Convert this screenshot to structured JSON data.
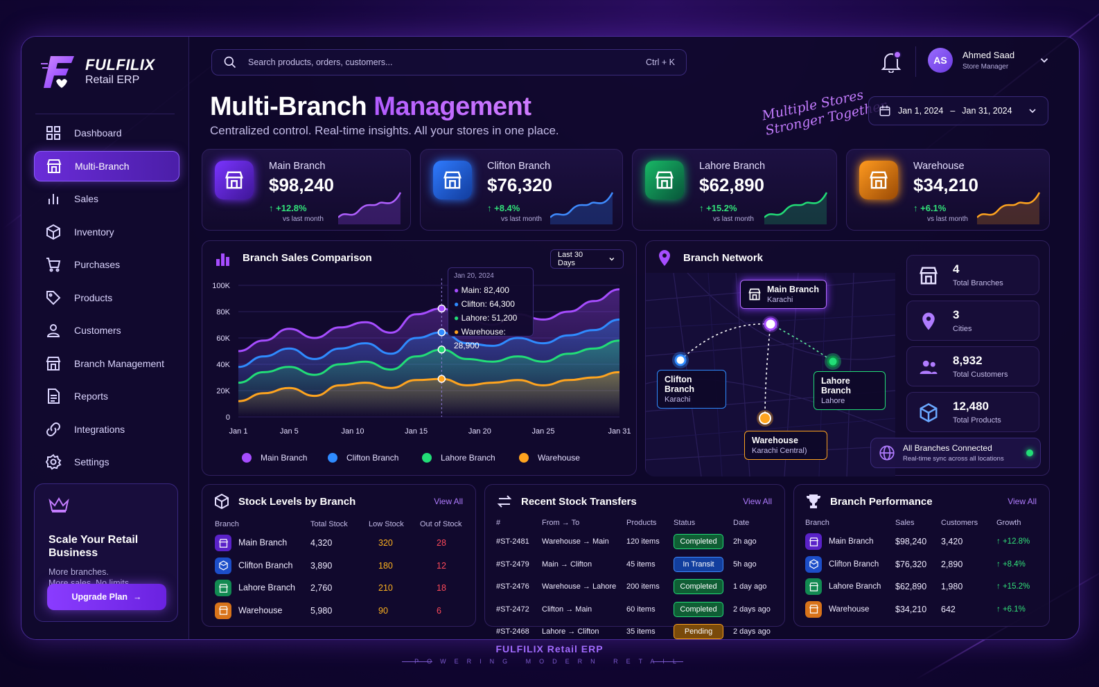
{
  "brand": {
    "name": "FULFILIX",
    "sub": "Retail ERP"
  },
  "search": {
    "placeholder": "Search products, orders, customers...",
    "shortcut": "Ctrl + K"
  },
  "user": {
    "initials": "AS",
    "name": "Ahmed Saad",
    "role": "Store Manager"
  },
  "nav": [
    {
      "label": "Dashboard",
      "icon": "grid-icon"
    },
    {
      "label": "Multi-Branch",
      "icon": "store-icon",
      "active": true
    },
    {
      "label": "Sales",
      "icon": "bar-chart-icon"
    },
    {
      "label": "Inventory",
      "icon": "box-icon"
    },
    {
      "label": "Purchases",
      "icon": "cart-icon"
    },
    {
      "label": "Products",
      "icon": "tag-icon"
    },
    {
      "label": "Customers",
      "icon": "user-icon"
    },
    {
      "label": "Branch Management",
      "icon": "store-icon"
    },
    {
      "label": "Reports",
      "icon": "document-icon"
    },
    {
      "label": "Integrations",
      "icon": "link-icon"
    },
    {
      "label": "Settings",
      "icon": "gear-icon"
    }
  ],
  "upgrade": {
    "title": "Scale Your Retail Business",
    "line1": "More branches.",
    "line2": "More sales. No limits.",
    "button": "Upgrade Plan"
  },
  "header": {
    "title_a": "Multi-Branch ",
    "title_b": "Management",
    "subtitle": "Centralized control. Real-time insights. All your stores in one place.",
    "tag1": "Multiple Stores",
    "tag2": "Stronger Together"
  },
  "date_range": {
    "from": "Jan 1, 2024",
    "sep": "–",
    "to": "Jan 31, 2024"
  },
  "kpis": [
    {
      "name": "Main Branch",
      "value": "$98,240",
      "change": "+12.8%",
      "vs": "vs last month",
      "color": "#9b4dff",
      "icon": "store-icon"
    },
    {
      "name": "Clifton Branch",
      "value": "$76,320",
      "change": "+8.4%",
      "vs": "vs last month",
      "color": "#2f7bff",
      "icon": "store-icon"
    },
    {
      "name": "Lahore Branch",
      "value": "$62,890",
      "change": "+15.2%",
      "vs": "vs last month",
      "color": "#1ed67a",
      "icon": "store-icon"
    },
    {
      "name": "Warehouse",
      "value": "$34,210",
      "change": "+6.1%",
      "vs": "vs last month",
      "color": "#ff9a1f",
      "icon": "store-icon"
    }
  ],
  "sales_panel": {
    "title": "Branch Sales Comparison",
    "range": "Last 30 Days"
  },
  "tooltip": {
    "date": "Jan 20, 2024",
    "rows": [
      "Main: 82,400",
      "Clifton: 64,300",
      "Lahore: 51,200",
      "Warehouse: 28,900"
    ]
  },
  "chart_data": {
    "type": "area",
    "x": [
      "Jan 1",
      "Jan 3",
      "Jan 5",
      "Jan 7",
      "Jan 9",
      "Jan 11",
      "Jan 13",
      "Jan 15",
      "Jan 17",
      "Jan 19",
      "Jan 21",
      "Jan 23",
      "Jan 25",
      "Jan 27",
      "Jan 29",
      "Jan 31"
    ],
    "xticks": [
      "Jan 1",
      "Jan 5",
      "Jan 10",
      "Jan 15",
      "Jan 20",
      "Jan 25",
      "Jan 31"
    ],
    "yticks": [
      "0",
      "20K",
      "40K",
      "60K",
      "80K",
      "100K"
    ],
    "ylim": [
      0,
      100000
    ],
    "series": [
      {
        "name": "Main Branch",
        "color": "#a64dff",
        "values": [
          50000,
          58000,
          67000,
          60000,
          68000,
          72000,
          64000,
          78000,
          82400,
          74000,
          70000,
          78000,
          74000,
          80000,
          88000,
          97000
        ]
      },
      {
        "name": "Clifton Branch",
        "color": "#2f8bff",
        "values": [
          38000,
          46000,
          52000,
          44000,
          52000,
          56000,
          48000,
          60000,
          64300,
          56000,
          54000,
          60000,
          56000,
          62000,
          66000,
          74000
        ]
      },
      {
        "name": "Lahore Branch",
        "color": "#22dd77",
        "values": [
          26000,
          34000,
          38000,
          32000,
          40000,
          42000,
          36000,
          46000,
          51200,
          44000,
          42000,
          46000,
          42000,
          48000,
          52000,
          58000
        ]
      },
      {
        "name": "Warehouse",
        "color": "#ffa41f",
        "values": [
          12000,
          18000,
          22000,
          16000,
          24000,
          26000,
          22000,
          28000,
          28900,
          24000,
          26000,
          28000,
          24000,
          28000,
          30000,
          34000
        ]
      }
    ]
  },
  "network": {
    "title": "Branch Network",
    "nodes": [
      {
        "name": "Main Branch",
        "city": "Karachi"
      },
      {
        "name": "Clifton Branch",
        "city": "Karachi"
      },
      {
        "name": "Lahore Branch",
        "city": "Lahore"
      },
      {
        "name": "Warehouse",
        "city": "Karachi Central)"
      }
    ],
    "stats": [
      {
        "value": "4",
        "label": "Total Branches",
        "icon": "store-icon"
      },
      {
        "value": "3",
        "label": "Cities",
        "icon": "pin-icon"
      },
      {
        "value": "8,932",
        "label": "Total Customers",
        "icon": "users-icon"
      },
      {
        "value": "12,480",
        "label": "Total Products",
        "icon": "box-icon"
      }
    ],
    "connected": {
      "title": "All Branches Connected",
      "sub": "Real-time sync across all locations"
    }
  },
  "stock": {
    "title": "Stock Levels by Branch",
    "view_all": "View All",
    "headers": [
      "Branch",
      "Total Stock",
      "Low Stock",
      "Out of Stock"
    ],
    "rows": [
      {
        "branch": "Main Branch",
        "total": "4,320",
        "low": "320",
        "out": "28",
        "color": "#7b3cff"
      },
      {
        "branch": "Clifton Branch",
        "total": "3,890",
        "low": "180",
        "out": "12",
        "color": "#2f6bff"
      },
      {
        "branch": "Lahore Branch",
        "total": "2,760",
        "low": "210",
        "out": "18",
        "color": "#19b866"
      },
      {
        "branch": "Warehouse",
        "total": "5,980",
        "low": "90",
        "out": "6",
        "color": "#ff8c1a"
      }
    ]
  },
  "transfers": {
    "title": "Recent Stock Transfers",
    "view_all": "View All",
    "headers": [
      "#",
      "From → To",
      "Products",
      "Status",
      "Date"
    ],
    "rows": [
      {
        "id": "#ST-2481",
        "route": "Warehouse → Main",
        "items": "120 items",
        "status": "Completed",
        "date": "2h ago"
      },
      {
        "id": "#ST-2479",
        "route": "Main → Clifton",
        "items": "45 items",
        "status": "In Transit",
        "date": "5h ago"
      },
      {
        "id": "#ST-2476",
        "route": "Warehouse → Lahore",
        "items": "200 items",
        "status": "Completed",
        "date": "1 day ago"
      },
      {
        "id": "#ST-2472",
        "route": "Clifton → Main",
        "items": "60 items",
        "status": "Completed",
        "date": "2 days ago"
      },
      {
        "id": "#ST-2468",
        "route": "Lahore → Clifton",
        "items": "35 items",
        "status": "Pending",
        "date": "2 days ago"
      }
    ]
  },
  "performance": {
    "title": "Branch Performance",
    "view_all": "View All",
    "headers": [
      "Branch",
      "Sales",
      "Customers",
      "Growth"
    ],
    "rows": [
      {
        "branch": "Main Branch",
        "sales": "$98,240",
        "customers": "3,420",
        "growth": "+12.8%",
        "color": "#7b3cff"
      },
      {
        "branch": "Clifton Branch",
        "sales": "$76,320",
        "customers": "2,890",
        "growth": "+8.4%",
        "color": "#2f6bff"
      },
      {
        "branch": "Lahore Branch",
        "sales": "$62,890",
        "customers": "1,980",
        "growth": "+15.2%",
        "color": "#19b866"
      },
      {
        "branch": "Warehouse",
        "sales": "$34,210",
        "customers": "642",
        "growth": "+6.1%",
        "color": "#ff8c1a"
      }
    ]
  },
  "footer": {
    "title": "FULFILIX Retail ERP",
    "tagline": "POWERING MODERN RETAIL"
  }
}
